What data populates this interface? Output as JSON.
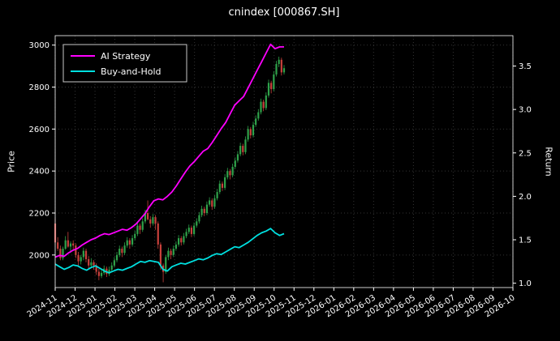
{
  "chart": {
    "title": "cnindex [000867.SH]",
    "ylabel_left": "Price",
    "ylabel_right": "Return",
    "bg": "#000000",
    "fg": "#ffffff",
    "grid_color": "#333333"
  },
  "chart_data": {
    "type": "candlestick+line",
    "title": "cnindex [000867.SH]",
    "legend_position": "upper-left",
    "grid": true,
    "up_color": "#2fa24a",
    "down_color": "#c8413c",
    "x_total_months": 23,
    "x_data_span_months": 11.5,
    "x_tick_labels": [
      "2024-11",
      "2024-12",
      "2025-01",
      "2025-02",
      "2025-03",
      "2025-04",
      "2025-05",
      "2025-06",
      "2025-07",
      "2025-08",
      "2025-09",
      "2025-10",
      "2025-11",
      "2025-12",
      "2026-01",
      "2026-02",
      "2026-03",
      "2026-04",
      "2026-05",
      "2026-06",
      "2026-07",
      "2026-08",
      "2026-09",
      "2026-10"
    ],
    "price_axis": {
      "label": "Price",
      "ticks": [
        2000,
        2200,
        2400,
        2600,
        2800,
        3000
      ],
      "tick_labels": [
        "2000",
        "2200",
        "2400",
        "2600",
        "2800",
        "3000"
      ],
      "lim": [
        1845,
        3045
      ]
    },
    "return_axis": {
      "label": "Return",
      "ticks": [
        1.0,
        1.5,
        2.0,
        2.5,
        3.0,
        3.5
      ],
      "tick_labels": [
        "1.0",
        "1.5",
        "2.0",
        "2.5",
        "3.0",
        "3.5"
      ],
      "lim": [
        0.95,
        3.85
      ]
    },
    "candles_ohlc": [
      [
        2150,
        2175,
        2045,
        2060
      ],
      [
        2060,
        2085,
        2020,
        2030
      ],
      [
        2030,
        2045,
        1975,
        1985
      ],
      [
        1985,
        2040,
        1975,
        2030
      ],
      [
        2030,
        2090,
        2025,
        2070
      ],
      [
        2070,
        2110,
        2035,
        2040
      ],
      [
        2040,
        2065,
        2010,
        2055
      ],
      [
        2055,
        2070,
        2020,
        2045
      ],
      [
        2045,
        2055,
        1985,
        2000
      ],
      [
        2000,
        2015,
        1950,
        1970
      ],
      [
        1970,
        2000,
        1955,
        1990
      ],
      [
        1990,
        2035,
        1975,
        2020
      ],
      [
        2020,
        2030,
        1965,
        1980
      ],
      [
        1980,
        1995,
        1935,
        1950
      ],
      [
        1950,
        1985,
        1940,
        1965
      ],
      [
        1965,
        1975,
        1930,
        1950
      ],
      [
        1950,
        1960,
        1905,
        1920
      ],
      [
        1920,
        1935,
        1880,
        1900
      ],
      [
        1900,
        1930,
        1890,
        1915
      ],
      [
        1915,
        1950,
        1905,
        1935
      ],
      [
        1935,
        1945,
        1895,
        1910
      ],
      [
        1910,
        1945,
        1900,
        1930
      ],
      [
        1930,
        1965,
        1920,
        1950
      ],
      [
        1950,
        1990,
        1940,
        1975
      ],
      [
        1975,
        2015,
        1965,
        2000
      ],
      [
        2000,
        2045,
        1990,
        2030
      ],
      [
        2030,
        2040,
        1990,
        2010
      ],
      [
        2010,
        2060,
        2000,
        2045
      ],
      [
        2045,
        2085,
        2035,
        2070
      ],
      [
        2070,
        2080,
        2030,
        2050
      ],
      [
        2050,
        2095,
        2040,
        2080
      ],
      [
        2080,
        2115,
        2070,
        2100
      ],
      [
        2100,
        2155,
        2090,
        2140
      ],
      [
        2140,
        2150,
        2100,
        2120
      ],
      [
        2120,
        2175,
        2110,
        2160
      ],
      [
        2160,
        2215,
        2150,
        2200
      ],
      [
        2200,
        2260,
        2165,
        2170
      ],
      [
        2170,
        2185,
        2130,
        2150
      ],
      [
        2150,
        2195,
        2140,
        2180
      ],
      [
        2180,
        2190,
        2120,
        2150
      ],
      [
        2150,
        2160,
        2030,
        2050
      ],
      [
        2050,
        2060,
        1930,
        1950
      ],
      [
        1950,
        1960,
        1870,
        1920
      ],
      [
        1920,
        2000,
        1910,
        1990
      ],
      [
        1990,
        2035,
        1975,
        2020
      ],
      [
        2020,
        2030,
        1980,
        2000
      ],
      [
        2000,
        2045,
        1990,
        2030
      ],
      [
        2030,
        2065,
        2020,
        2050
      ],
      [
        2050,
        2095,
        2040,
        2080
      ],
      [
        2080,
        2090,
        2045,
        2060
      ],
      [
        2060,
        2105,
        2050,
        2090
      ],
      [
        2090,
        2125,
        2080,
        2110
      ],
      [
        2110,
        2145,
        2100,
        2130
      ],
      [
        2130,
        2140,
        2085,
        2100
      ],
      [
        2100,
        2155,
        2090,
        2140
      ],
      [
        2140,
        2175,
        2130,
        2160
      ],
      [
        2160,
        2205,
        2150,
        2190
      ],
      [
        2190,
        2235,
        2180,
        2220
      ],
      [
        2220,
        2230,
        2185,
        2200
      ],
      [
        2200,
        2255,
        2190,
        2240
      ],
      [
        2240,
        2275,
        2230,
        2260
      ],
      [
        2260,
        2270,
        2215,
        2230
      ],
      [
        2230,
        2285,
        2220,
        2270
      ],
      [
        2270,
        2315,
        2260,
        2300
      ],
      [
        2300,
        2355,
        2290,
        2340
      ],
      [
        2340,
        2350,
        2305,
        2320
      ],
      [
        2320,
        2385,
        2310,
        2370
      ],
      [
        2370,
        2415,
        2360,
        2400
      ],
      [
        2400,
        2410,
        2360,
        2380
      ],
      [
        2380,
        2435,
        2370,
        2420
      ],
      [
        2420,
        2465,
        2410,
        2450
      ],
      [
        2450,
        2495,
        2440,
        2480
      ],
      [
        2480,
        2535,
        2470,
        2520
      ],
      [
        2520,
        2530,
        2475,
        2490
      ],
      [
        2490,
        2565,
        2480,
        2550
      ],
      [
        2550,
        2615,
        2540,
        2600
      ],
      [
        2600,
        2610,
        2555,
        2570
      ],
      [
        2570,
        2635,
        2560,
        2620
      ],
      [
        2620,
        2665,
        2610,
        2650
      ],
      [
        2650,
        2695,
        2640,
        2680
      ],
      [
        2680,
        2745,
        2670,
        2730
      ],
      [
        2730,
        2740,
        2685,
        2700
      ],
      [
        2700,
        2775,
        2690,
        2760
      ],
      [
        2760,
        2835,
        2750,
        2820
      ],
      [
        2820,
        2830,
        2770,
        2790
      ],
      [
        2790,
        2875,
        2780,
        2860
      ],
      [
        2860,
        2925,
        2850,
        2910
      ],
      [
        2910,
        2945,
        2895,
        2930
      ],
      [
        2930,
        2940,
        2855,
        2870
      ],
      [
        2870,
        2905,
        2860,
        2890
      ]
    ],
    "series": [
      {
        "name": "AI Strategy",
        "color": "#ff00ff",
        "axis": "return",
        "values": [
          1.3,
          1.32,
          1.31,
          1.35,
          1.38,
          1.4,
          1.44,
          1.47,
          1.5,
          1.52,
          1.55,
          1.57,
          1.56,
          1.58,
          1.6,
          1.62,
          1.61,
          1.64,
          1.68,
          1.74,
          1.8,
          1.88,
          1.95,
          1.97,
          1.96,
          2.0,
          2.05,
          2.12,
          2.2,
          2.28,
          2.35,
          2.4,
          2.46,
          2.52,
          2.55,
          2.62,
          2.7,
          2.78,
          2.85,
          2.95,
          3.05,
          3.1,
          3.15,
          3.25,
          3.35,
          3.45,
          3.55,
          3.65,
          3.75,
          3.7,
          3.72,
          3.72
        ]
      },
      {
        "name": "Buy-and-Hold",
        "color": "#00e0e0",
        "axis": "return",
        "values": [
          1.22,
          1.19,
          1.16,
          1.18,
          1.21,
          1.2,
          1.17,
          1.15,
          1.18,
          1.2,
          1.17,
          1.14,
          1.12,
          1.14,
          1.16,
          1.15,
          1.17,
          1.19,
          1.22,
          1.25,
          1.24,
          1.26,
          1.25,
          1.24,
          1.16,
          1.14,
          1.19,
          1.21,
          1.23,
          1.22,
          1.24,
          1.26,
          1.28,
          1.27,
          1.29,
          1.32,
          1.34,
          1.33,
          1.36,
          1.39,
          1.42,
          1.41,
          1.44,
          1.47,
          1.51,
          1.55,
          1.58,
          1.6,
          1.63,
          1.58,
          1.55,
          1.57
        ]
      }
    ]
  }
}
